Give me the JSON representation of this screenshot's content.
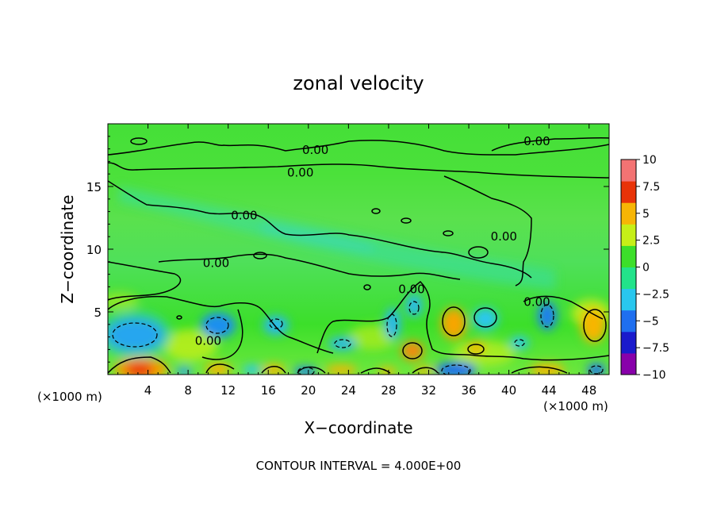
{
  "chart_data": {
    "type": "heatmap",
    "title": "zonal velocity",
    "xlabel": "X−coordinate",
    "ylabel": "Z−coordinate",
    "x_unit_left": "(×1000 m)",
    "x_unit_right": "(×1000 m)",
    "footer": "CONTOUR INTERVAL = 4.000E+00",
    "xlim": [
      0,
      50
    ],
    "ylim": [
      0,
      20
    ],
    "x_ticks": [
      4,
      8,
      12,
      16,
      20,
      24,
      28,
      32,
      36,
      40,
      44,
      48
    ],
    "y_ticks": [
      5,
      10,
      15
    ],
    "colorbar": {
      "min": -10,
      "max": 10,
      "tick_values": [
        10,
        7.5,
        5,
        2.5,
        0,
        -2.5,
        -5,
        -7.5,
        -10
      ],
      "tick_labels": [
        "10",
        "7.5",
        "5",
        "2.5",
        "0",
        "−2.5",
        "−5",
        "−7.5",
        "−10"
      ],
      "colors": [
        "#8800aa",
        "#1a1acc",
        "#1f6fef",
        "#29c7ee",
        "#22e38a",
        "#3cdf2a",
        "#c6ef17",
        "#f7b505",
        "#e83308",
        "#f37373"
      ]
    },
    "contour_labels": [
      {
        "text": "0.00",
        "x": 20.7,
        "z": 17.9
      },
      {
        "text": "0.00",
        "x": 42.8,
        "z": 18.6
      },
      {
        "text": "0.00",
        "x": 19.2,
        "z": 16.1
      },
      {
        "text": "0.00",
        "x": 13.6,
        "z": 12.7
      },
      {
        "text": "0.00",
        "x": 39.5,
        "z": 11.0
      },
      {
        "text": "0.00",
        "x": 10.8,
        "z": 8.9
      },
      {
        "text": "0.00",
        "x": 30.3,
        "z": 6.8
      },
      {
        "text": "0.00",
        "x": 42.8,
        "z": 5.8
      },
      {
        "text": "0.00",
        "x": 10.0,
        "z": 2.7
      }
    ]
  }
}
